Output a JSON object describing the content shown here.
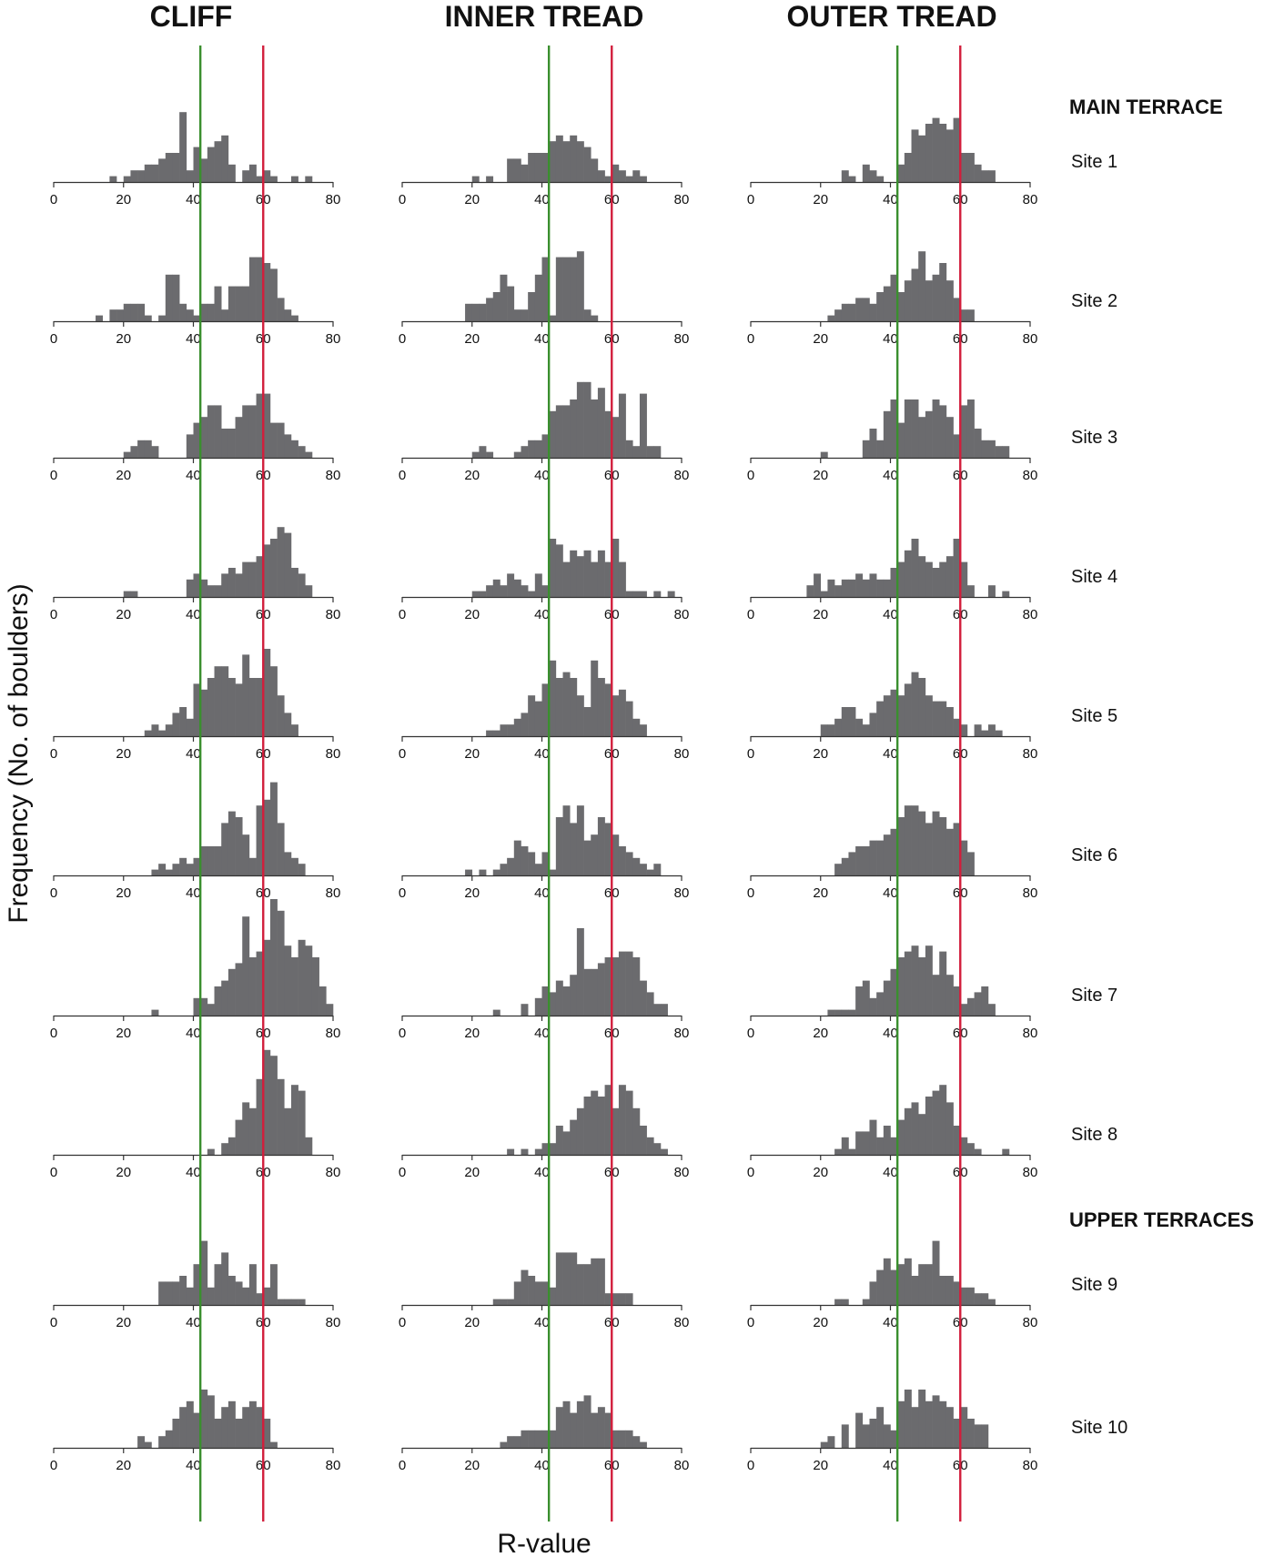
{
  "chart_data": {
    "type": "bar",
    "description_kind": "histogram-grid",
    "xlabel": "R-value",
    "ylabel": "Frequency (No. of boulders)",
    "xlim": [
      0,
      80
    ],
    "xticks": [
      "0",
      "20",
      "40",
      "60",
      "80"
    ],
    "bin_width": 2,
    "reference_lines": [
      {
        "name": "green-line",
        "x": 42,
        "color": "#3a8f2e"
      },
      {
        "name": "red-line",
        "x": 60,
        "color": "#d21e3c"
      }
    ],
    "bar_color": "#6b6b6e",
    "columns": [
      "CLIFF",
      "INNER TREAD",
      "OUTER TREAD"
    ],
    "groups": [
      {
        "label": "MAIN TERRACE",
        "before_row": 0
      },
      {
        "label": "UPPER TERRACES",
        "before_row": 8
      }
    ],
    "rows": [
      {
        "site": "Site 1",
        "hist": [
          {
            "start": 16,
            "counts": [
              1,
              0,
              1,
              2,
              2,
              3,
              3,
              4,
              5,
              5,
              12,
              2,
              6,
              4,
              6,
              7,
              8,
              3,
              0,
              2,
              3,
              1,
              2,
              1,
              0,
              0,
              1,
              0,
              1
            ]
          },
          {
            "start": 20,
            "counts": [
              1,
              0,
              1,
              0,
              0,
              4,
              4,
              3,
              5,
              5,
              5,
              7,
              8,
              7,
              8,
              7,
              6,
              4,
              2,
              1,
              3,
              2,
              1,
              2,
              1
            ]
          },
          {
            "start": 26,
            "counts": [
              2,
              1,
              0,
              3,
              2,
              1,
              0,
              0,
              3,
              5,
              9,
              8,
              10,
              11,
              10,
              9,
              11,
              5,
              5,
              3,
              2,
              2
            ]
          }
        ]
      },
      {
        "site": "Site 2",
        "hist": [
          {
            "start": 12,
            "counts": [
              1,
              0,
              2,
              2,
              3,
              3,
              3,
              1,
              0,
              1,
              8,
              8,
              3,
              2,
              1,
              3,
              3,
              6,
              2,
              6,
              6,
              6,
              11,
              11,
              10,
              9,
              4,
              2,
              1
            ]
          },
          {
            "start": 18,
            "counts": [
              3,
              3,
              3,
              4,
              5,
              8,
              6,
              2,
              2,
              5,
              8,
              11,
              1,
              11,
              11,
              11,
              12,
              2,
              1
            ]
          },
          {
            "start": 22,
            "counts": [
              1,
              2,
              3,
              3,
              4,
              4,
              3,
              5,
              6,
              8,
              5,
              7,
              9,
              12,
              7,
              8,
              10,
              7,
              4,
              2,
              2
            ]
          }
        ]
      },
      {
        "site": "Site 3",
        "hist": [
          {
            "start": 20,
            "counts": [
              1,
              2,
              3,
              3,
              2,
              0,
              0,
              0,
              0,
              4,
              6,
              7,
              9,
              9,
              5,
              5,
              7,
              9,
              9,
              11,
              11,
              6,
              6,
              4,
              3,
              2,
              1
            ]
          },
          {
            "start": 20,
            "counts": [
              1,
              2,
              1,
              0,
              0,
              0,
              1,
              2,
              3,
              3,
              4,
              8,
              9,
              9,
              10,
              13,
              13,
              10,
              12,
              8,
              7,
              11,
              3,
              2,
              11,
              2,
              2
            ]
          },
          {
            "start": 20,
            "counts": [
              1,
              0,
              0,
              0,
              0,
              0,
              3,
              5,
              3,
              8,
              10,
              6,
              10,
              10,
              7,
              8,
              10,
              9,
              7,
              4,
              9,
              10,
              5,
              3,
              3,
              2,
              2
            ]
          }
        ]
      },
      {
        "site": "Site 4",
        "hist": [
          {
            "start": 20,
            "counts": [
              1,
              1,
              0,
              0,
              0,
              0,
              0,
              0,
              0,
              3,
              4,
              3,
              2,
              2,
              4,
              5,
              4,
              6,
              6,
              7,
              9,
              10,
              12,
              11,
              5,
              4,
              2
            ]
          },
          {
            "start": 20,
            "counts": [
              1,
              1,
              2,
              3,
              2,
              4,
              3,
              2,
              1,
              4,
              2,
              10,
              9,
              6,
              8,
              7,
              8,
              6,
              8,
              6,
              10,
              6,
              1,
              1,
              1,
              0,
              1,
              0,
              1
            ]
          },
          {
            "start": 16,
            "counts": [
              2,
              4,
              1,
              3,
              2,
              3,
              3,
              4,
              3,
              4,
              3,
              3,
              5,
              6,
              8,
              10,
              7,
              6,
              5,
              6,
              7,
              10,
              6,
              2,
              0,
              0,
              2,
              0,
              1
            ]
          }
        ]
      },
      {
        "site": "Site 5",
        "hist": [
          {
            "start": 26,
            "counts": [
              1,
              2,
              1,
              2,
              4,
              5,
              3,
              9,
              8,
              10,
              12,
              12,
              10,
              9,
              14,
              10,
              10,
              15,
              12,
              7,
              4,
              2
            ]
          },
          {
            "start": 24,
            "counts": [
              1,
              1,
              2,
              2,
              3,
              4,
              7,
              6,
              9,
              13,
              10,
              11,
              10,
              7,
              5,
              13,
              10,
              9,
              7,
              8,
              6,
              3,
              2
            ]
          },
          {
            "start": 20,
            "counts": [
              2,
              2,
              3,
              5,
              5,
              3,
              2,
              4,
              6,
              7,
              8,
              7,
              9,
              11,
              10,
              7,
              6,
              6,
              5,
              3,
              2,
              0,
              2,
              1,
              2,
              1
            ]
          }
        ]
      },
      {
        "site": "Site 6",
        "hist": [
          {
            "start": 28,
            "counts": [
              1,
              2,
              1,
              2,
              3,
              2,
              3,
              5,
              5,
              5,
              9,
              11,
              10,
              7,
              3,
              12,
              13,
              16,
              9,
              4,
              3,
              2
            ]
          },
          {
            "start": 18,
            "counts": [
              1,
              0,
              1,
              0,
              1,
              2,
              3,
              6,
              5,
              4,
              2,
              4,
              1,
              10,
              12,
              9,
              12,
              6,
              7,
              10,
              9,
              7,
              5,
              4,
              3,
              2,
              1,
              2
            ]
          },
          {
            "start": 24,
            "counts": [
              2,
              3,
              4,
              5,
              5,
              6,
              6,
              7,
              8,
              10,
              12,
              12,
              11,
              9,
              11,
              10,
              8,
              9,
              6,
              4
            ]
          }
        ]
      },
      {
        "site": "Site 7",
        "hist": [
          {
            "start": 28,
            "counts": [
              1,
              0,
              0,
              0,
              0,
              0,
              3,
              3,
              2,
              5,
              6,
              8,
              9,
              17,
              10,
              11,
              13,
              20,
              18,
              12,
              10,
              13,
              12,
              10,
              5,
              2
            ]
          },
          {
            "start": 26,
            "counts": [
              1,
              0,
              0,
              0,
              2,
              0,
              3,
              5,
              4,
              6,
              5,
              7,
              15,
              8,
              8,
              9,
              10,
              10,
              11,
              11,
              10,
              6,
              4,
              2,
              2
            ]
          },
          {
            "start": 22,
            "counts": [
              1,
              1,
              1,
              1,
              5,
              6,
              3,
              4,
              6,
              8,
              10,
              11,
              12,
              10,
              12,
              7,
              11,
              7,
              5,
              2,
              3,
              4,
              5,
              2
            ]
          }
        ]
      },
      {
        "site": "Site 8",
        "hist": [
          {
            "start": 44,
            "counts": [
              1,
              0,
              2,
              3,
              6,
              9,
              8,
              13,
              18,
              17,
              13,
              8,
              12,
              11,
              3
            ]
          },
          {
            "start": 30,
            "counts": [
              1,
              0,
              1,
              0,
              1,
              2,
              2,
              5,
              4,
              6,
              8,
              10,
              11,
              10,
              12,
              8,
              12,
              11,
              8,
              5,
              3,
              2,
              1
            ]
          },
          {
            "start": 24,
            "counts": [
              1,
              3,
              1,
              4,
              4,
              6,
              3,
              5,
              3,
              6,
              8,
              9,
              7,
              10,
              11,
              12,
              9,
              5,
              3,
              2,
              1,
              0,
              0,
              0,
              1
            ]
          }
        ]
      },
      {
        "site": "Site 9",
        "hist": [
          {
            "start": 30,
            "counts": [
              4,
              4,
              4,
              5,
              3,
              7,
              11,
              3,
              7,
              9,
              5,
              4,
              3,
              7,
              2,
              3,
              7,
              1,
              1,
              1,
              1
            ]
          },
          {
            "start": 26,
            "counts": [
              1,
              1,
              1,
              4,
              6,
              5,
              4,
              4,
              3,
              9,
              9,
              9,
              7,
              7,
              8,
              8,
              2,
              2,
              2,
              2
            ]
          },
          {
            "start": 24,
            "counts": [
              1,
              1,
              0,
              0,
              1,
              4,
              6,
              8,
              6,
              7,
              8,
              5,
              7,
              7,
              11,
              5,
              5,
              4,
              3,
              3,
              2,
              2,
              1
            ]
          }
        ]
      },
      {
        "site": "Site 10",
        "hist": [
          {
            "start": 24,
            "counts": [
              2,
              1,
              0,
              2,
              3,
              5,
              7,
              8,
              6,
              10,
              9,
              5,
              7,
              8,
              5,
              7,
              8,
              7,
              5,
              1
            ]
          },
          {
            "start": 28,
            "counts": [
              1,
              2,
              2,
              3,
              3,
              3,
              3,
              3,
              7,
              8,
              6,
              8,
              9,
              6,
              7,
              6,
              3,
              3,
              3,
              2,
              1
            ]
          },
          {
            "start": 20,
            "counts": [
              1,
              2,
              0,
              4,
              0,
              6,
              4,
              5,
              7,
              4,
              3,
              8,
              10,
              7,
              10,
              8,
              9,
              8,
              7,
              5,
              7,
              5,
              4,
              4
            ]
          }
        ]
      }
    ]
  }
}
